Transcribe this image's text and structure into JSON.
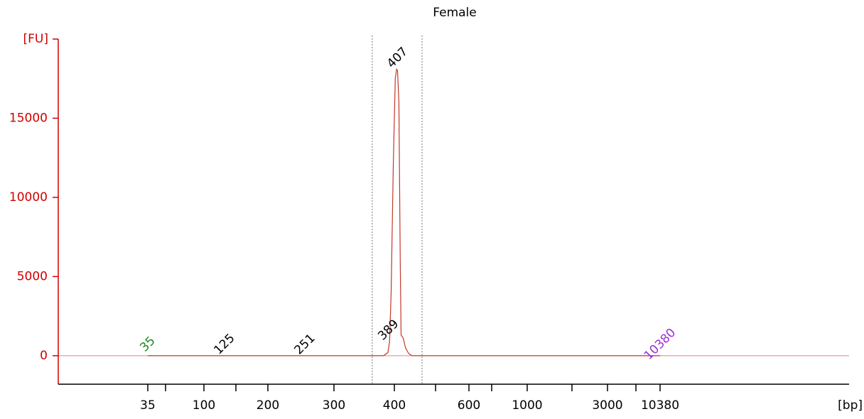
{
  "chart_data": {
    "type": "line",
    "title": "Female",
    "ylabel": "[FU]",
    "xlabel": "[bp]",
    "ylim": [
      -1800,
      20000
    ],
    "yticks": [
      0,
      5000,
      10000,
      15000
    ],
    "xticks": [
      35,
      100,
      200,
      300,
      400,
      600,
      1000,
      3000,
      10380
    ],
    "series": [
      {
        "name": "Female",
        "color": "#c0392b",
        "x": [
          35,
          100,
          200,
          300,
          380,
          388,
          391,
          394,
          398,
          402,
          405,
          407,
          410,
          413,
          415,
          420,
          425,
          432,
          440,
          600,
          1000,
          3000,
          10380
        ],
        "values": [
          0,
          0,
          0,
          0,
          0,
          200,
          900,
          4000,
          12000,
          17500,
          18100,
          18000,
          16000,
          6000,
          1300,
          1100,
          500,
          150,
          0,
          0,
          0,
          0,
          0
        ]
      }
    ],
    "peaks": [
      35,
      125,
      251,
      389,
      407,
      10380
    ],
    "peak_colors": [
      "#1a8a1a",
      "#000000",
      "#000000",
      "#000000",
      "#000000",
      "#9b30d9"
    ],
    "region_bounds": [
      360,
      465
    ],
    "y_axis_color": "#d00000"
  }
}
